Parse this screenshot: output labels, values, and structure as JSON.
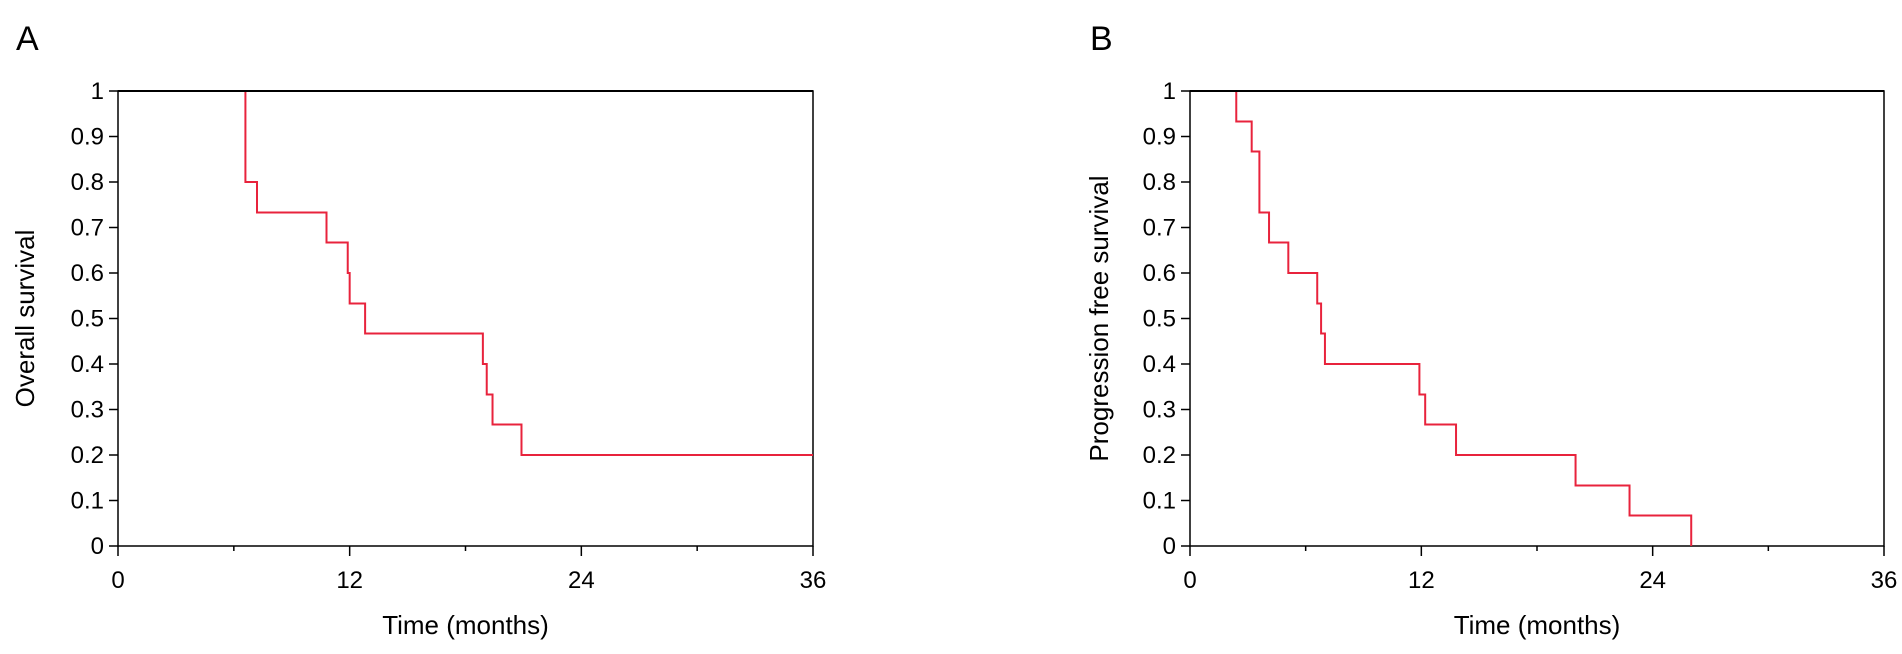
{
  "chart_data": [
    {
      "panel": "A",
      "type": "line",
      "step": true,
      "xlabel": "Time (months)",
      "ylabel": "Overall survival",
      "xlim": [
        0,
        36
      ],
      "ylim": [
        0,
        1
      ],
      "x_ticks": [
        0,
        12,
        24,
        36
      ],
      "y_ticks": [
        0.0,
        0.1,
        0.2,
        0.3,
        0.4,
        0.5,
        0.6,
        0.7,
        0.8,
        0.9,
        1.0
      ],
      "line_color": "#e8233c",
      "grid": false,
      "series": [
        {
          "x": [
            0,
            6.6,
            7.2,
            10.8,
            11.9,
            12.0,
            12.8,
            18.9,
            19.1,
            19.4,
            20.9,
            36
          ],
          "y": [
            1.0,
            0.8,
            0.733,
            0.667,
            0.6,
            0.533,
            0.467,
            0.4,
            0.333,
            0.267,
            0.2,
            0.2
          ]
        }
      ]
    },
    {
      "panel": "B",
      "type": "line",
      "step": true,
      "xlabel": "Time (months)",
      "ylabel": "Progression free survival",
      "xlim": [
        0,
        36
      ],
      "ylim": [
        0,
        1
      ],
      "x_ticks": [
        0,
        12,
        24,
        36
      ],
      "y_ticks": [
        0.0,
        0.1,
        0.2,
        0.3,
        0.4,
        0.5,
        0.6,
        0.7,
        0.8,
        0.9,
        1.0
      ],
      "line_color": "#e8233c",
      "grid": false,
      "series": [
        {
          "x": [
            0,
            2.4,
            3.2,
            3.6,
            4.1,
            5.1,
            6.6,
            6.8,
            7.0,
            11.9,
            12.2,
            13.8,
            20.0,
            22.8,
            26.0
          ],
          "y": [
            1.0,
            0.933,
            0.867,
            0.733,
            0.667,
            0.6,
            0.533,
            0.467,
            0.4,
            0.333,
            0.267,
            0.2,
            0.133,
            0.067,
            0.0
          ]
        }
      ]
    }
  ]
}
